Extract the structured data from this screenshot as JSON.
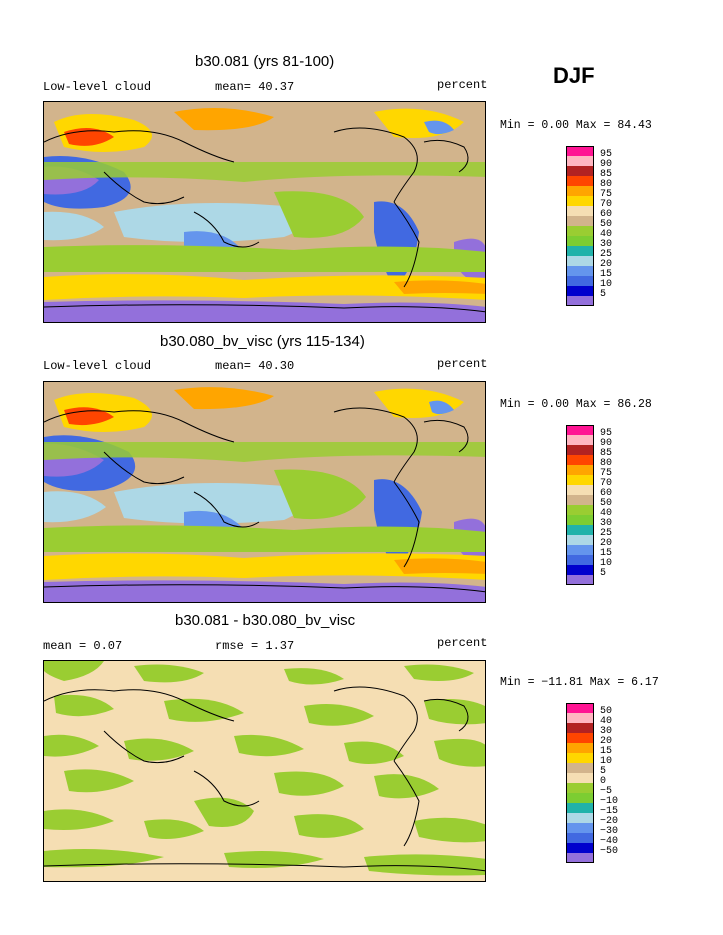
{
  "season": "DJF",
  "panels": [
    {
      "title": "b30.081 (yrs 81-100)",
      "left_label": "Low-level cloud",
      "center_label": "mean=  40.37",
      "units": "percent",
      "min_text": "Min =   0.00 Max =  84.43",
      "levels": [
        "95",
        "90",
        "85",
        "80",
        "75",
        "70",
        "60",
        "50",
        "40",
        "30",
        "25",
        "20",
        "15",
        "10",
        "5"
      ],
      "colors": [
        "#ff1493",
        "#ffb6c1",
        "#b22222",
        "#ff4500",
        "#ffa500",
        "#ffd700",
        "#f5deb3",
        "#d2b48c",
        "#9acd32",
        "#7ccd32",
        "#20b2aa",
        "#add8e6",
        "#6495ed",
        "#4169e1",
        "#0000cd",
        "#9370db"
      ]
    },
    {
      "title": "b30.080_bv_visc (yrs 115-134)",
      "left_label": "Low-level cloud",
      "center_label": "mean=  40.30",
      "units": "percent",
      "min_text": "Min =   0.00 Max =  86.28",
      "levels": [
        "95",
        "90",
        "85",
        "80",
        "75",
        "70",
        "60",
        "50",
        "40",
        "30",
        "25",
        "20",
        "15",
        "10",
        "5"
      ],
      "colors": [
        "#ff1493",
        "#ffb6c1",
        "#b22222",
        "#ff4500",
        "#ffa500",
        "#ffd700",
        "#f5deb3",
        "#d2b48c",
        "#9acd32",
        "#7ccd32",
        "#20b2aa",
        "#add8e6",
        "#6495ed",
        "#4169e1",
        "#0000cd",
        "#9370db"
      ]
    },
    {
      "title": "b30.081 - b30.080_bv_visc",
      "left_label": "mean =   0.07",
      "center_label": "rmse =   1.37",
      "units": "percent",
      "min_text": "Min = −11.81 Max =   6.17",
      "levels": [
        "50",
        "40",
        "30",
        "20",
        "15",
        "10",
        "5",
        "0",
        "−5",
        "−10",
        "−15",
        "−20",
        "−30",
        "−40",
        "−50"
      ],
      "colors": [
        "#ff1493",
        "#ffb6c1",
        "#b22222",
        "#ff4500",
        "#ffa500",
        "#ffd700",
        "#d2b48c",
        "#f5deb3",
        "#9acd32",
        "#7ccd32",
        "#20b2aa",
        "#add8e6",
        "#6495ed",
        "#4169e1",
        "#0000cd",
        "#9370db"
      ]
    }
  ]
}
